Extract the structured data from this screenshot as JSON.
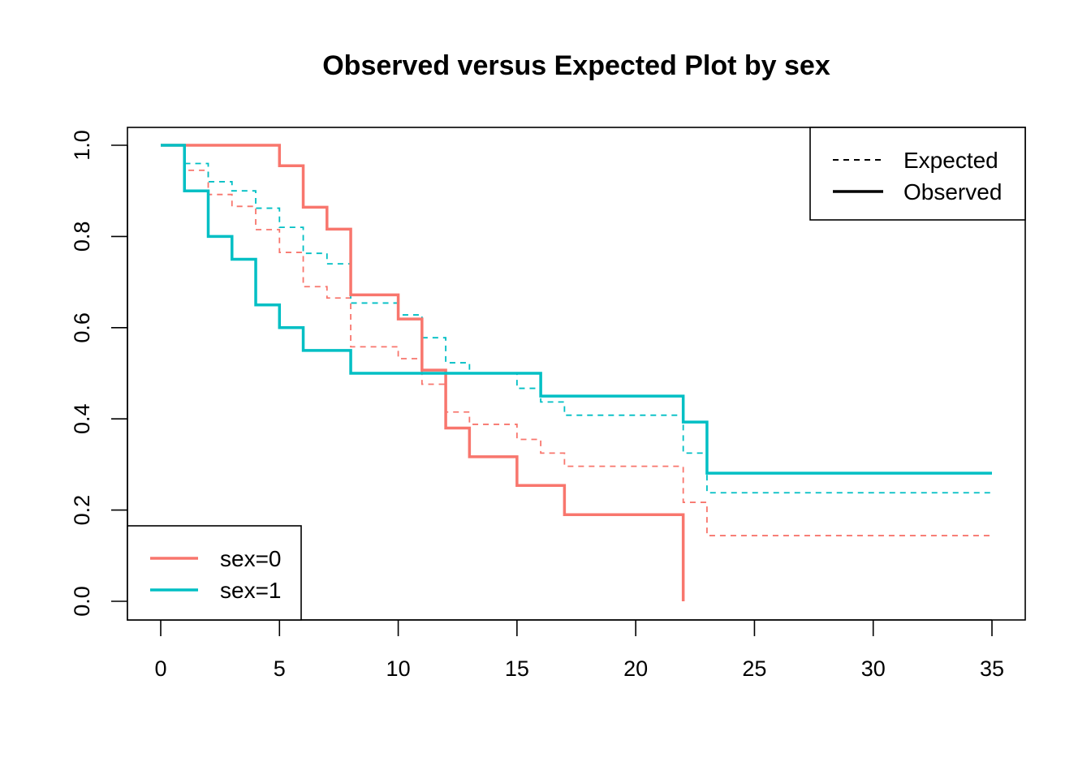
{
  "chart_data": {
    "type": "line",
    "title": "Observed versus Expected Plot by sex",
    "xlabel": "",
    "ylabel": "",
    "xlim": [
      0,
      35
    ],
    "ylim": [
      0,
      1
    ],
    "xticks": [
      "0",
      "5",
      "10",
      "15",
      "20",
      "25",
      "30",
      "35"
    ],
    "yticks": [
      "0.0",
      "0.2",
      "0.4",
      "0.6",
      "0.8",
      "1.0"
    ],
    "grid": false,
    "step": true,
    "colors": {
      "sex0": "#F8766D",
      "sex1": "#00BFC4"
    },
    "legend_linetype": {
      "position": "top-right",
      "entries": [
        {
          "label": "Expected",
          "style": "dashed"
        },
        {
          "label": "Observed",
          "style": "solid"
        }
      ]
    },
    "legend_groups": {
      "position": "bottom-left",
      "entries": [
        {
          "label": "sex=0",
          "color": "#F8766D"
        },
        {
          "label": "sex=1",
          "color": "#00BFC4"
        }
      ]
    },
    "series": [
      {
        "group": "sex=0",
        "kind": "Observed",
        "color": "#F8766D",
        "x": [
          0,
          5,
          6,
          7,
          8,
          10,
          11,
          12,
          13,
          15,
          17,
          22
        ],
        "y": [
          1.0,
          0.955,
          0.864,
          0.816,
          0.672,
          0.619,
          0.507,
          0.38,
          0.317,
          0.254,
          0.19,
          0.0
        ]
      },
      {
        "group": "sex=1",
        "kind": "Observed",
        "color": "#00BFC4",
        "x": [
          0,
          1,
          2,
          3,
          4,
          5,
          6,
          8,
          16,
          22,
          23
        ],
        "y": [
          1.0,
          0.9,
          0.8,
          0.75,
          0.65,
          0.6,
          0.55,
          0.5,
          0.45,
          0.393,
          0.281
        ],
        "x_end": 35
      },
      {
        "group": "sex=0",
        "kind": "Expected",
        "color": "#F8766D",
        "x": [
          0,
          1,
          2,
          3,
          4,
          5,
          6,
          7,
          8,
          10,
          11,
          12,
          13,
          15,
          16,
          17,
          22,
          23
        ],
        "y": [
          1.0,
          0.945,
          0.892,
          0.866,
          0.815,
          0.765,
          0.69,
          0.665,
          0.558,
          0.532,
          0.476,
          0.415,
          0.388,
          0.355,
          0.325,
          0.296,
          0.217,
          0.144
        ],
        "x_end": 35
      },
      {
        "group": "sex=1",
        "kind": "Expected",
        "color": "#00BFC4",
        "x": [
          0,
          1,
          2,
          3,
          4,
          5,
          6,
          7,
          8,
          10,
          11,
          12,
          13,
          15,
          16,
          17,
          22,
          23
        ],
        "y": [
          1.0,
          0.96,
          0.92,
          0.9,
          0.862,
          0.82,
          0.763,
          0.74,
          0.654,
          0.628,
          0.578,
          0.523,
          0.5,
          0.467,
          0.437,
          0.408,
          0.325,
          0.238
        ],
        "x_end": 35
      }
    ]
  }
}
